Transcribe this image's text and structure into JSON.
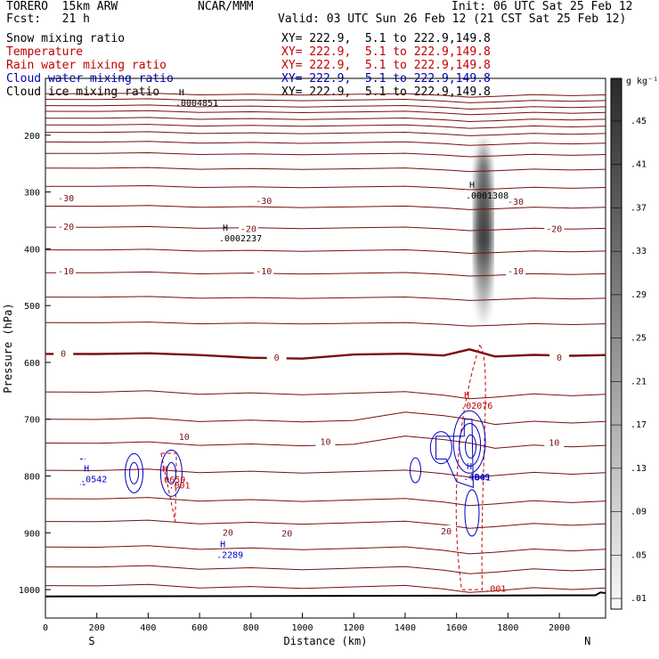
{
  "header": {
    "model": "TORERO  15km ARW",
    "center": "NCAR/MMM",
    "init": "Init: 06 UTC Sat 25 Feb 12",
    "fcst": "Fcst:   21 h",
    "valid": "Valid: 03 UTC Sun 26 Feb 12 (21 CST Sat 25 Feb 12)"
  },
  "fields": [
    {
      "name": "Snow mixing ratio",
      "xy": "XY= 222.9,  5.1 to 222.9,149.8",
      "color": "#000000"
    },
    {
      "name": "Temperature",
      "xy": "XY= 222.9,  5.1 to 222.9,149.8",
      "color": "#c00000"
    },
    {
      "name": "Rain water mixing ratio",
      "xy": "XY= 222.9,  5.1 to 222.9,149.8",
      "color": "#c00000"
    },
    {
      "name": "Cloud water mixing ratio",
      "xy": "XY= 222.9,  5.1 to 222.9,149.8",
      "color": "#0000c0"
    },
    {
      "name": "Cloud ice mixing ratio",
      "xy": "XY= 222.9,  5.1 to 222.9,149.8",
      "color": "#000000"
    }
  ],
  "chart_data": {
    "type": "contour",
    "xlabel": "Distance (km)",
    "ylabel": "Pressure (hPa)",
    "x_ticks": [
      0,
      200,
      400,
      600,
      800,
      1000,
      1200,
      1400,
      1600,
      1800,
      2000
    ],
    "y_ticks": [
      200,
      300,
      400,
      500,
      600,
      700,
      800,
      900,
      1000
    ],
    "xlim": [
      0,
      2180
    ],
    "ylim": [
      1050,
      100
    ],
    "x_end_labels": {
      "left": "S",
      "right": "N"
    },
    "colorbar": {
      "unit": "g kg⁻¹",
      "levels": [
        ".01",
        ".05",
        ".09",
        ".13",
        ".17",
        ".21",
        ".25",
        ".29",
        ".33",
        ".37",
        ".41",
        ".45"
      ]
    },
    "temperature_labels": [
      {
        "text": "-30",
        "x": 80,
        "p": 312
      },
      {
        "text": "-30",
        "x": 850,
        "p": 316
      },
      {
        "text": "-30",
        "x": 1830,
        "p": 318
      },
      {
        "text": "-20",
        "x": 80,
        "p": 362
      },
      {
        "text": "-20",
        "x": 790,
        "p": 366
      },
      {
        "text": "-20",
        "x": 1980,
        "p": 366
      },
      {
        "text": "-10",
        "x": 80,
        "p": 440
      },
      {
        "text": "-10",
        "x": 850,
        "p": 440
      },
      {
        "text": "-10",
        "x": 1830,
        "p": 440
      },
      {
        "text": "0",
        "x": 70,
        "p": 585
      },
      {
        "text": "0",
        "x": 900,
        "p": 592
      },
      {
        "text": "0",
        "x": 2000,
        "p": 592
      },
      {
        "text": "10",
        "x": 540,
        "p": 732
      },
      {
        "text": "10",
        "x": 1090,
        "p": 740
      },
      {
        "text": "10",
        "x": 1980,
        "p": 742
      },
      {
        "text": "20",
        "x": 710,
        "p": 900
      },
      {
        "text": "20",
        "x": 940,
        "p": 902
      },
      {
        "text": "20",
        "x": 1560,
        "p": 898
      }
    ],
    "temperature_contours_p_at_x0": [
      127,
      137,
      148,
      158,
      170,
      182,
      195,
      212,
      232,
      258,
      290,
      325,
      362,
      402,
      442,
      485,
      530,
      585,
      652,
      700,
      742,
      790,
      840,
      880,
      925,
      960,
      993
    ],
    "extrema": [
      {
        "field": "Cloud ice",
        "label": "H",
        "value": ".0004851",
        "x": 530,
        "p": 130,
        "color": "#000000"
      },
      {
        "field": "Cloud ice",
        "label": "H",
        "value": ".0002237",
        "x": 700,
        "p": 368,
        "color": "#000000"
      },
      {
        "field": "Snow",
        "label": "H",
        "value": ".0001308",
        "x": 1660,
        "p": 293,
        "color": "#000000"
      },
      {
        "field": "Rain water",
        "label": "H",
        "value": ".02076",
        "x": 1640,
        "p": 663,
        "color": "#c00000"
      },
      {
        "field": "Rain water",
        "label": "H",
        "value": ".0659",
        "x": 465,
        "p": 793,
        "color": "#c00000"
      },
      {
        "field": "Cloud water",
        "label": "H",
        "value": ".0542",
        "x": 160,
        "p": 792,
        "color": "#0000c0"
      },
      {
        "field": "Cloud water",
        "label": "H",
        "value": ".4849",
        "x": 1650,
        "p": 788,
        "color": "#0000c0"
      },
      {
        "field": "Cloud water",
        "label": "H",
        "value": ".2289",
        "x": 690,
        "p": 925,
        "color": "#0000c0"
      }
    ],
    "contour_labels": [
      {
        "text": ".001",
        "x": 1650,
        "p": 808,
        "color": "#0000c0"
      },
      {
        "text": ".001",
        "x": 480,
        "p": 822,
        "color": "#c00000"
      },
      {
        "text": ".001",
        "x": 1710,
        "p": 1004,
        "color": "#c00000"
      }
    ]
  }
}
